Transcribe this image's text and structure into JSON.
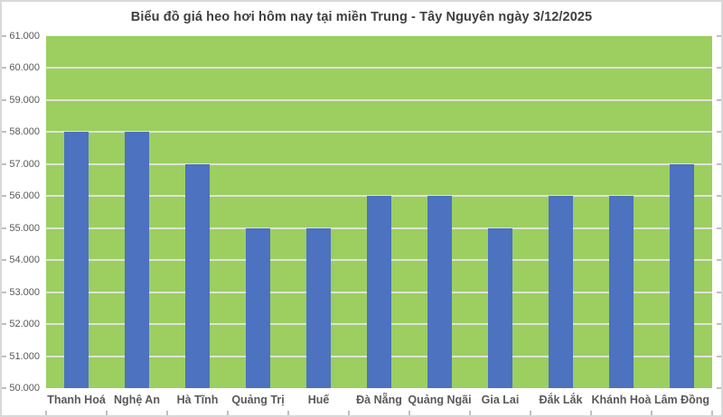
{
  "chart_data": {
    "type": "bar",
    "title": "Biểu đồ giá heo hơi hôm nay tại miền Trung - Tây Nguyên ngày 3/12/2025",
    "categories": [
      "Thanh Hoá",
      "Nghệ An",
      "Hà Tĩnh",
      "Quảng Trị",
      "Huế",
      "Đà Nẵng",
      "Quảng Ngãi",
      "Gia Lai",
      "Đắk Lắk",
      "Khánh Hoà",
      "Lâm Đồng"
    ],
    "values": [
      58000,
      58000,
      57000,
      55000,
      55000,
      56000,
      56000,
      55000,
      56000,
      56000,
      57000
    ],
    "xlabel": "",
    "ylabel": "",
    "ylim": [
      50000,
      61000
    ],
    "ytick_step": 1000,
    "ytick_labels_top_to_bottom": [
      "61.000",
      "60.000",
      "59.000",
      "58.000",
      "57.000",
      "56.000",
      "55.000",
      "54.000",
      "53.000",
      "52.000",
      "51.000",
      "50.000"
    ],
    "grid": true,
    "legend": "none",
    "colors": {
      "bar": "#4C72C0",
      "plot_background": "#9CCE60",
      "gridline": "#DFE2DA",
      "chart_border": "#D9D9D9",
      "tick_mark": "#BFBFBF",
      "title_text": "#404040",
      "axis_text": "#595959",
      "chart_background": "#FFFFFF"
    }
  }
}
